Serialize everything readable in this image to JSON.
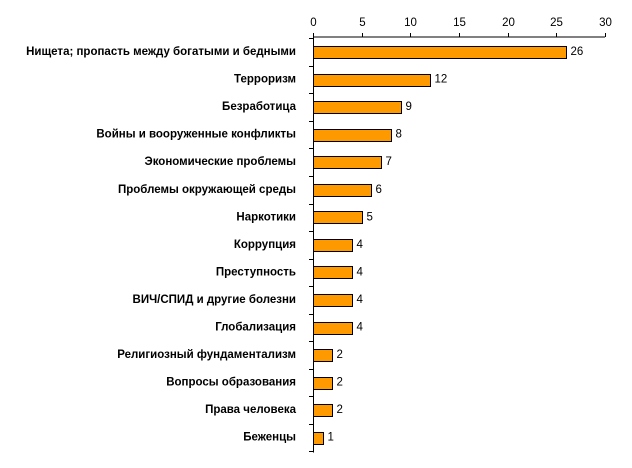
{
  "colors": {
    "bar_fill": "#FF9900",
    "bar_stroke": "#000000",
    "axis": "#000000",
    "background": "#FFFFFF"
  },
  "chart_data": {
    "type": "bar",
    "orientation": "horizontal",
    "title": "",
    "xlabel": "",
    "ylabel": "",
    "xlim": [
      0,
      30
    ],
    "x_ticks": [
      0,
      5,
      10,
      15,
      20,
      25,
      30
    ],
    "x_axis_position": "top",
    "grid": false,
    "legend": false,
    "categories": [
      "Нищета; пропасть между богатыми и бедными",
      "Терроризм",
      "Безработица",
      "Войны и вооруженные конфликты",
      "Экономические проблемы",
      "Проблемы окружающей среды",
      "Наркотики",
      "Коррупция",
      "Преступность",
      "ВИЧ/СПИД и другие болезни",
      "Глобализация",
      "Религиозный фундаментализм",
      "Вопросы образования",
      "Права человека",
      "Беженцы"
    ],
    "values": [
      26,
      12,
      9,
      8,
      7,
      6,
      5,
      4,
      4,
      4,
      4,
      2,
      2,
      2,
      1
    ],
    "data_labels": [
      "26",
      "12",
      "9",
      "8",
      "7",
      "6",
      "5",
      "4",
      "4",
      "4",
      "4",
      "2",
      "2",
      "2",
      "1"
    ]
  }
}
